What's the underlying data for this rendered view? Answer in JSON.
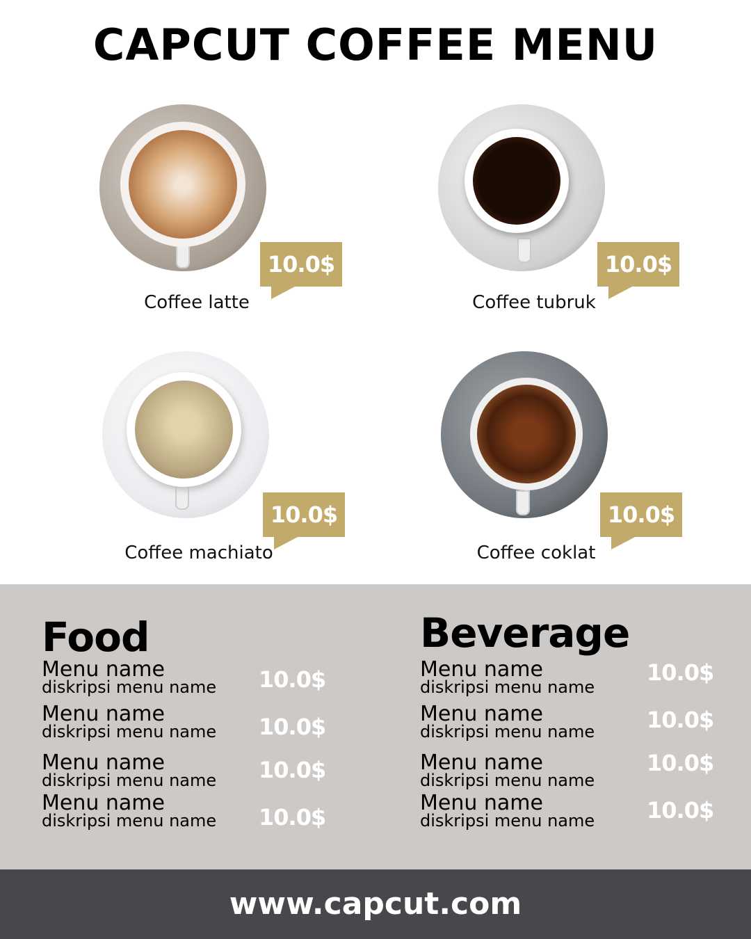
{
  "title": "CAPCUT COFFEE MENU",
  "colors": {
    "gold": "#c2ab6a",
    "panel": "#cdc9c6",
    "footer": "#48474b"
  },
  "featured": [
    {
      "name": "Coffee latte",
      "price": "10.0$"
    },
    {
      "name": "Coffee tubruk",
      "price": "10.0$"
    },
    {
      "name": "Coffee machiato",
      "price": "10.0$"
    },
    {
      "name": "Coffee coklat",
      "price": "10.0$"
    }
  ],
  "food": {
    "title": "Food",
    "items": [
      {
        "name": "Menu name",
        "desc": "diskripsi menu name",
        "price": "10.0$"
      },
      {
        "name": "Menu name",
        "desc": "diskripsi menu name",
        "price": "10.0$"
      },
      {
        "name": "Menu name",
        "desc": "diskripsi menu name",
        "price": "10.0$"
      },
      {
        "name": "Menu name",
        "desc": "diskripsi menu name",
        "price": "10.0$"
      }
    ]
  },
  "beverage": {
    "title": "Beverage",
    "items": [
      {
        "name": "Menu name",
        "desc": "diskripsi menu name",
        "price": "10.0$"
      },
      {
        "name": "Menu name",
        "desc": "diskripsi menu name",
        "price": "10.0$"
      },
      {
        "name": "Menu name",
        "desc": "diskripsi menu name",
        "price": "10.0$"
      },
      {
        "name": "Menu name",
        "desc": "diskripsi menu name",
        "price": "10.0$"
      }
    ]
  },
  "footer": "www.capcut.com"
}
